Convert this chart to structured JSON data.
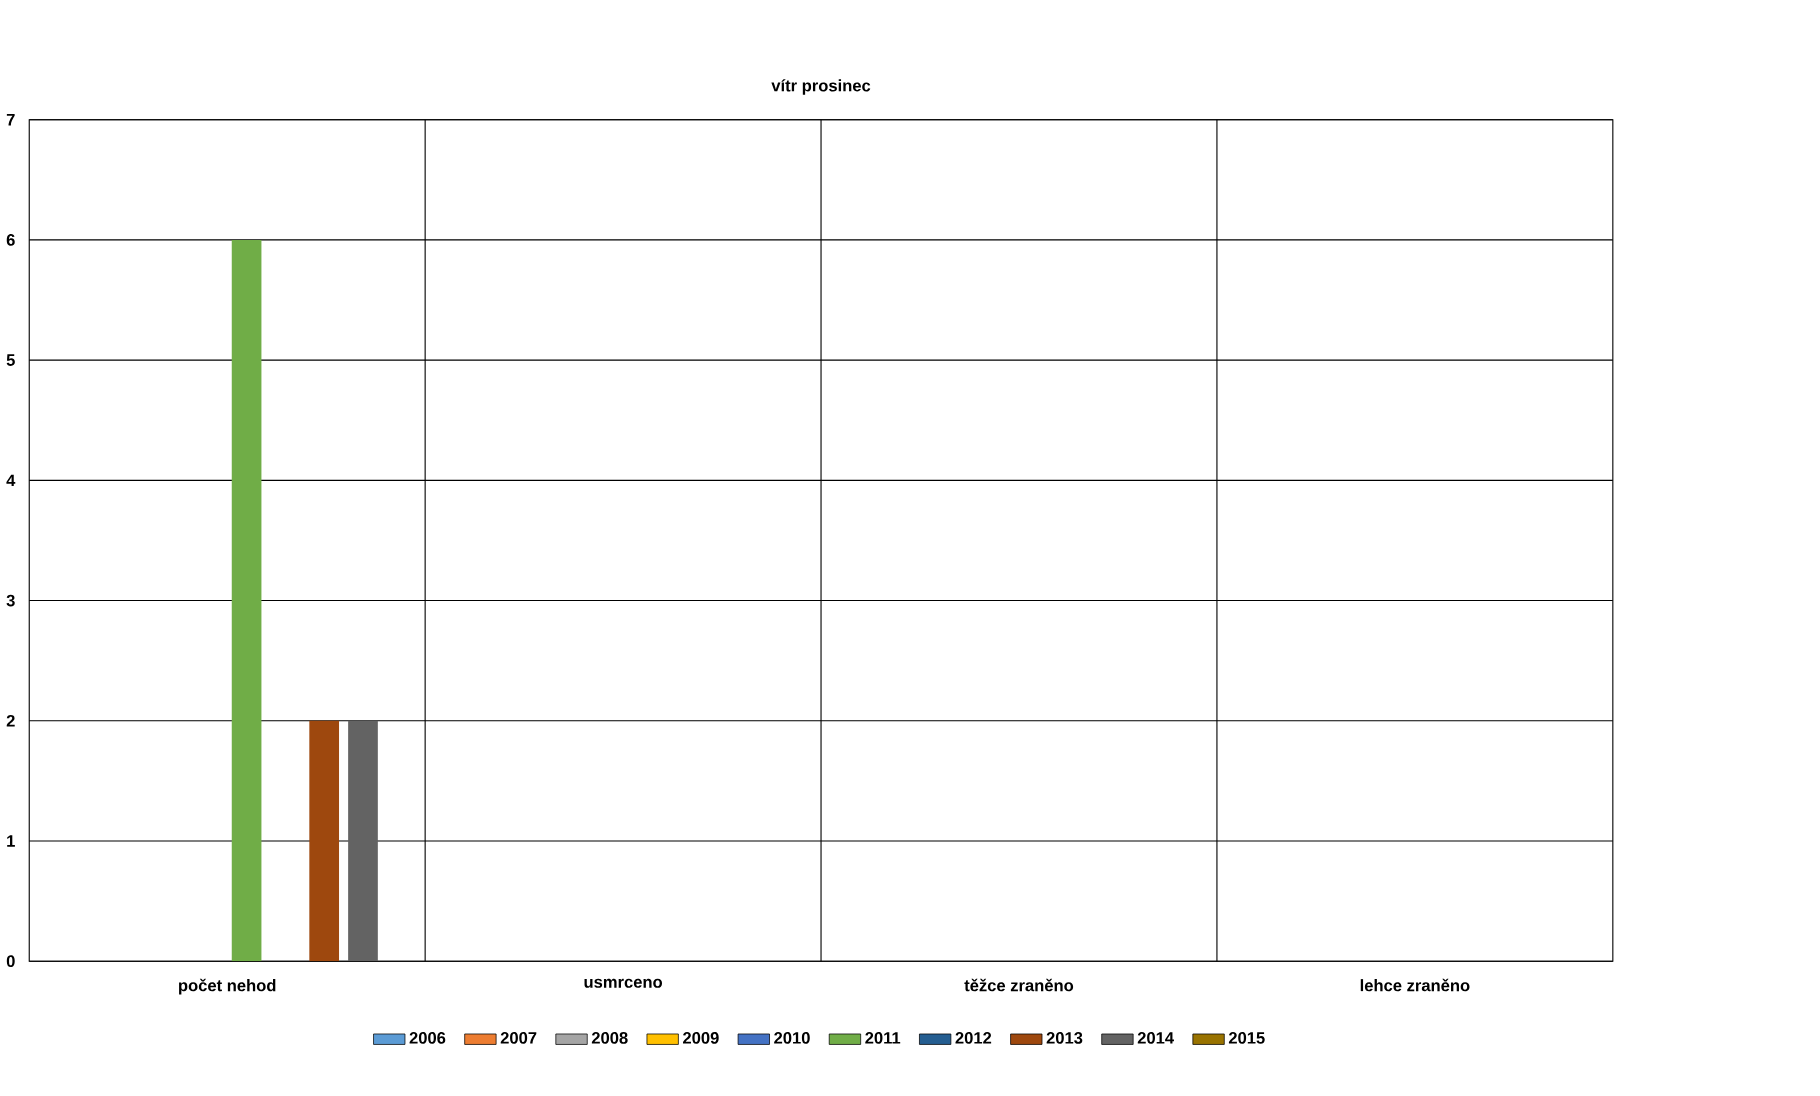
{
  "chart_data": {
    "type": "bar",
    "title": "vítr prosinec",
    "categories": [
      "počet nehod",
      "usmrceno",
      "těžce zraněno",
      "lehce zraněno"
    ],
    "series": [
      {
        "name": "2006",
        "color": "#5b9bd5",
        "values": [
          0,
          0,
          0,
          0
        ]
      },
      {
        "name": "2007",
        "color": "#ed7d31",
        "values": [
          0,
          0,
          0,
          0
        ]
      },
      {
        "name": "2008",
        "color": "#a5a5a5",
        "values": [
          0,
          0,
          0,
          0
        ]
      },
      {
        "name": "2009",
        "color": "#ffc000",
        "values": [
          0,
          0,
          0,
          0
        ]
      },
      {
        "name": "2010",
        "color": "#4472c4",
        "values": [
          0,
          0,
          0,
          0
        ]
      },
      {
        "name": "2011",
        "color": "#70ad47",
        "values": [
          6,
          0,
          0,
          0
        ]
      },
      {
        "name": "2012",
        "color": "#255e91",
        "values": [
          0,
          0,
          0,
          0
        ]
      },
      {
        "name": "2013",
        "color": "#9e480e",
        "values": [
          2,
          0,
          0,
          0
        ]
      },
      {
        "name": "2014",
        "color": "#636363",
        "values": [
          2,
          0,
          0,
          0
        ]
      },
      {
        "name": "2015",
        "color": "#997300",
        "values": [
          0,
          0,
          0,
          0
        ]
      }
    ],
    "ylim": [
      0,
      7
    ],
    "yticks": [
      0,
      1,
      2,
      3,
      4,
      5,
      6,
      7
    ],
    "grid": true,
    "legend": "bottom"
  }
}
